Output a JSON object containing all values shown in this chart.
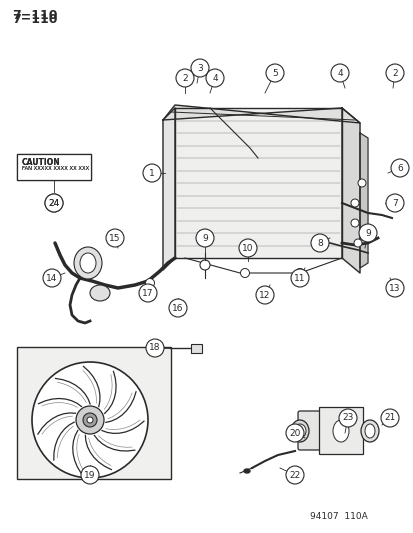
{
  "background_color": "#f5f5f0",
  "line_color": "#2a2a2a",
  "page_number": "7−110",
  "footer": "94107  110A",
  "caution_text1": "CAUTION",
  "caution_text2": "FAN XXXXX XXXX XX XXX",
  "fig_w": 4.14,
  "fig_h": 5.33,
  "dpi": 100
}
